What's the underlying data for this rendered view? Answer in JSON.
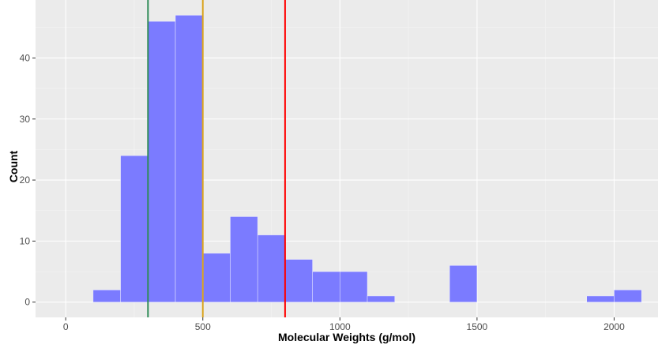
{
  "chart_data": {
    "type": "bar",
    "xlabel": "Molecular Weights (g/mol)",
    "ylabel": "Count",
    "xlim": [
      -110,
      2160
    ],
    "ylim": [
      -2.5,
      49.5
    ],
    "x_ticks": [
      0,
      500,
      1000,
      1500,
      2000
    ],
    "y_ticks": [
      0,
      10,
      20,
      30,
      40
    ],
    "bin_width": 100,
    "bins": [
      {
        "start": 100,
        "count": 2
      },
      {
        "start": 200,
        "count": 24
      },
      {
        "start": 300,
        "count": 46
      },
      {
        "start": 400,
        "count": 47
      },
      {
        "start": 500,
        "count": 8
      },
      {
        "start": 600,
        "count": 14
      },
      {
        "start": 700,
        "count": 11
      },
      {
        "start": 800,
        "count": 7
      },
      {
        "start": 900,
        "count": 5
      },
      {
        "start": 1000,
        "count": 5
      },
      {
        "start": 1100,
        "count": 1
      },
      {
        "start": 1400,
        "count": 6
      },
      {
        "start": 1900,
        "count": 1
      },
      {
        "start": 2000,
        "count": 2
      }
    ],
    "vlines": [
      {
        "x": 300,
        "color": "#2e8b57"
      },
      {
        "x": 500,
        "color": "#daa520"
      },
      {
        "x": 800,
        "color": "#ff0000"
      }
    ],
    "bar_color": "#7b7bff",
    "panel_background": "#ebebeb",
    "grid": true,
    "legend": "none"
  }
}
